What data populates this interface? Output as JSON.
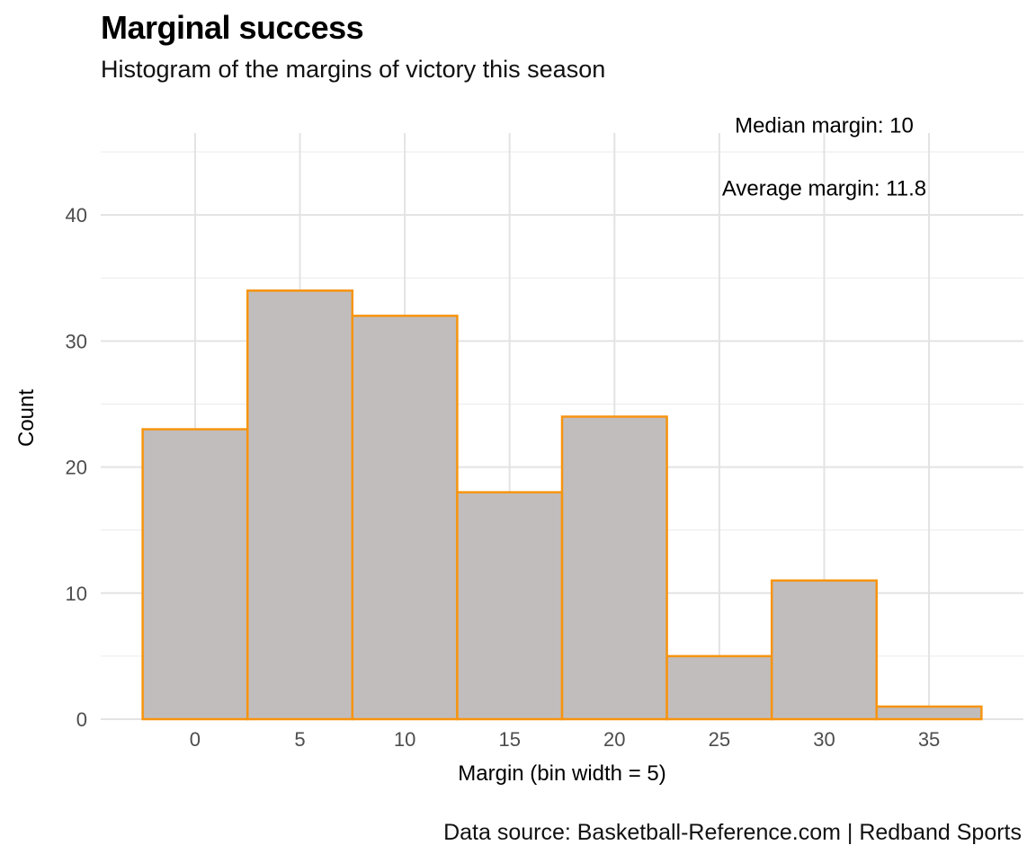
{
  "title": "Marginal success",
  "subtitle": "Histogram of the margins of victory this season",
  "caption": "Data source: Basketball-Reference.com  |  Redband Sports",
  "chart_data": {
    "type": "bar",
    "histogram": true,
    "bin_width": 5,
    "bins": [
      {
        "center": 0,
        "count": 23
      },
      {
        "center": 5,
        "count": 34
      },
      {
        "center": 10,
        "count": 32
      },
      {
        "center": 15,
        "count": 18
      },
      {
        "center": 20,
        "count": 24
      },
      {
        "center": 25,
        "count": 5
      },
      {
        "center": 30,
        "count": 11
      },
      {
        "center": 35,
        "count": 1
      }
    ],
    "xlabel": "Margin (bin width = 5)",
    "ylabel": "Count",
    "xlim": [
      -4.5,
      39.5
    ],
    "ylim": [
      0,
      46.5
    ],
    "x_ticks": [
      0,
      5,
      10,
      15,
      20,
      25,
      30,
      35
    ],
    "y_ticks": [
      0,
      10,
      20,
      30,
      40
    ],
    "grid": true,
    "bar_fill": "#c1bdbd",
    "bar_outline": "#f7940f",
    "annotations": [
      {
        "text": "Median margin: 10",
        "x": 30,
        "y": 47
      },
      {
        "text": "Average margin: 11.8",
        "x": 30,
        "y": 42
      }
    ]
  }
}
